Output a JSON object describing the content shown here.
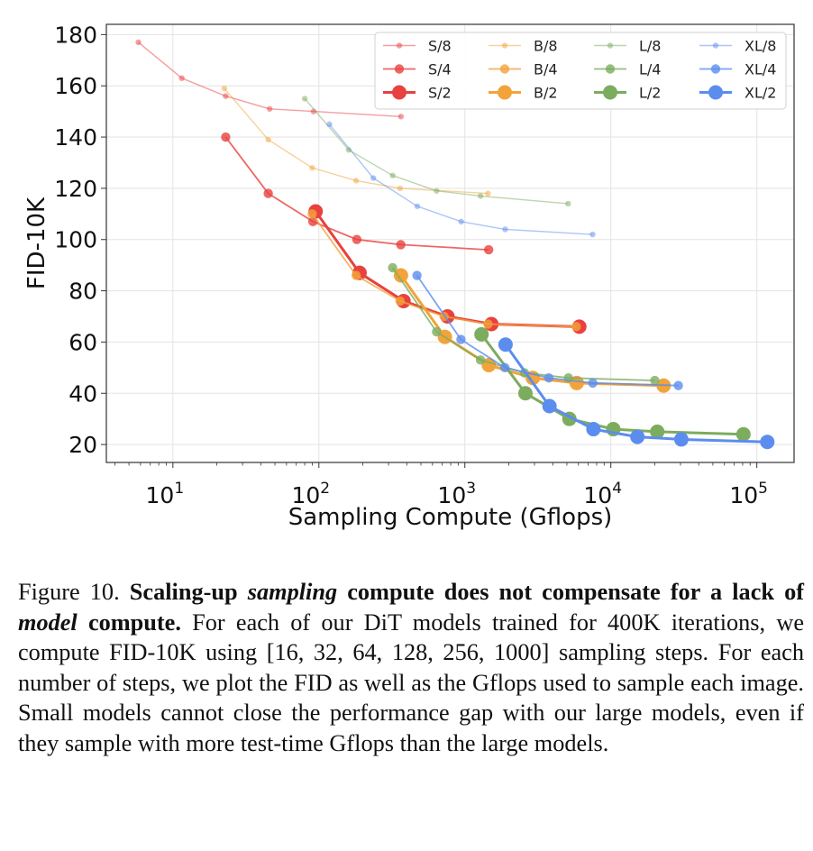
{
  "chart_data": {
    "type": "line",
    "title": "",
    "xlabel": "Sampling Compute (Gflops)",
    "ylabel": "FID-10K",
    "xscale": "log",
    "xlim": [
      3.5,
      180000
    ],
    "ylim": [
      13,
      184
    ],
    "xticks": [
      10,
      100,
      1000,
      10000,
      100000
    ],
    "yticks": [
      20,
      40,
      60,
      80,
      100,
      120,
      140,
      160,
      180
    ],
    "grid": true,
    "legend_position": "top-right",
    "colors": {
      "S": "#e8413f",
      "B": "#f2a33a",
      "L": "#7cac5e",
      "XL": "#5b8def"
    },
    "series": [
      {
        "name": "S/8",
        "family": "S",
        "size": "small",
        "x": [
          5.8,
          11.5,
          23,
          46,
          92,
          365
        ],
        "y": [
          177,
          163,
          156,
          151,
          150,
          148
        ]
      },
      {
        "name": "S/4",
        "family": "S",
        "size": "medium",
        "x": [
          23,
          45,
          91,
          182,
          364,
          1456
        ],
        "y": [
          140,
          118,
          107,
          100,
          98,
          96
        ]
      },
      {
        "name": "S/2",
        "family": "S",
        "size": "large",
        "x": [
          95,
          190,
          380,
          760,
          1520,
          6080
        ],
        "y": [
          111,
          87,
          76,
          70,
          67,
          66
        ]
      },
      {
        "name": "B/8",
        "family": "B",
        "size": "small",
        "x": [
          22.5,
          45,
          90,
          180,
          360,
          1440
        ],
        "y": [
          159,
          139,
          128,
          123,
          120,
          118
        ]
      },
      {
        "name": "B/4",
        "family": "B",
        "size": "medium",
        "x": [
          90,
          180,
          360,
          720,
          1440,
          5800
        ],
        "y": [
          110,
          86,
          76,
          70,
          67,
          66
        ]
      },
      {
        "name": "B/2",
        "family": "B",
        "size": "large",
        "x": [
          365,
          730,
          1460,
          2920,
          5840,
          23000
        ],
        "y": [
          86,
          62,
          51,
          46,
          44,
          43
        ]
      },
      {
        "name": "L/8",
        "family": "L",
        "size": "small",
        "x": [
          80,
          160,
          320,
          640,
          1280,
          5100
        ],
        "y": [
          155,
          135,
          125,
          119,
          117,
          114
        ]
      },
      {
        "name": "L/4",
        "family": "L",
        "size": "medium",
        "x": [
          320,
          640,
          1280,
          2560,
          5120,
          20000
        ],
        "y": [
          89,
          64,
          53,
          48,
          46,
          45
        ]
      },
      {
        "name": "L/2",
        "family": "L",
        "size": "large",
        "x": [
          1300,
          2600,
          5200,
          10400,
          20800,
          81000
        ],
        "y": [
          63,
          40,
          30,
          26,
          25,
          24
        ]
      },
      {
        "name": "XL/8",
        "family": "XL",
        "size": "small",
        "x": [
          118,
          236,
          472,
          944,
          1888,
          7500
        ],
        "y": [
          145,
          124,
          113,
          107,
          104,
          102
        ]
      },
      {
        "name": "XL/4",
        "family": "XL",
        "size": "medium",
        "x": [
          470,
          940,
          1880,
          3760,
          7520,
          29000
        ],
        "y": [
          86,
          61,
          50,
          46,
          44,
          43
        ]
      },
      {
        "name": "XL/2",
        "family": "XL",
        "size": "large",
        "x": [
          1900,
          3800,
          7600,
          15200,
          30400,
          118000
        ],
        "y": [
          59,
          35,
          26,
          23,
          22,
          21
        ]
      }
    ]
  },
  "caption": {
    "fig_label": "Figure 10.",
    "bold_1": "Scaling-up",
    "bold_italic_1": "sampling",
    "bold_2": "compute does not compensate for a lack of",
    "bold_italic_2": "model",
    "bold_3": "compute.",
    "body": "For each of our DiT models trained for 400K iterations, we compute FID-10K using [16, 32, 64, 128, 256, 1000] sampling steps. For each number of steps, we plot the FID as well as the Gflops used to sample each image. Small models cannot close the performance gap with our large models, even if they sample with more test-time Gflops than the large models."
  }
}
